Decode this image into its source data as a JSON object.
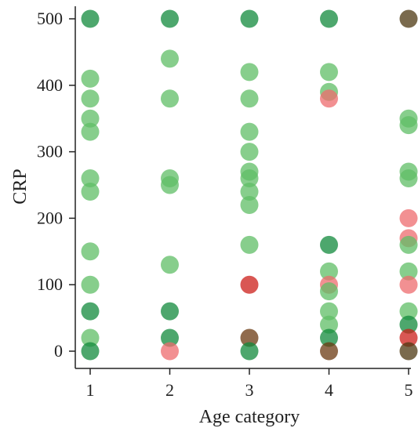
{
  "chart_data": {
    "type": "scatter",
    "xlabel": "Age category",
    "ylabel": "CRP",
    "xlim": [
      0.8,
      5.2
    ],
    "ylim": [
      -20,
      520
    ],
    "x_ticks": [
      "1",
      "2",
      "3",
      "4",
      "5"
    ],
    "y_ticks": [
      "0",
      "100",
      "200",
      "300",
      "400",
      "500"
    ],
    "grid": false,
    "legend": "none",
    "colors": {
      "light_green": "#5fbd66",
      "dark_green": "#118a3c",
      "light_red": "#ee6b6e",
      "dark_red": "#cc1f1a",
      "brown": "#6b3a12",
      "dark_brown": "#4d3811"
    },
    "points": [
      {
        "x": 1,
        "y": 500,
        "color": "dark_green"
      },
      {
        "x": 1,
        "y": 410,
        "color": "light_green"
      },
      {
        "x": 1,
        "y": 380,
        "color": "light_green"
      },
      {
        "x": 1,
        "y": 350,
        "color": "light_green"
      },
      {
        "x": 1,
        "y": 330,
        "color": "light_green"
      },
      {
        "x": 1,
        "y": 260,
        "color": "light_green"
      },
      {
        "x": 1,
        "y": 240,
        "color": "light_green"
      },
      {
        "x": 1,
        "y": 150,
        "color": "light_green"
      },
      {
        "x": 1,
        "y": 100,
        "color": "light_green"
      },
      {
        "x": 1,
        "y": 60,
        "color": "dark_green"
      },
      {
        "x": 1,
        "y": 20,
        "color": "light_green"
      },
      {
        "x": 1,
        "y": 0,
        "color": "dark_green"
      },
      {
        "x": 2,
        "y": 500,
        "color": "dark_green"
      },
      {
        "x": 2,
        "y": 440,
        "color": "light_green"
      },
      {
        "x": 2,
        "y": 380,
        "color": "light_green"
      },
      {
        "x": 2,
        "y": 260,
        "color": "light_green"
      },
      {
        "x": 2,
        "y": 250,
        "color": "light_green"
      },
      {
        "x": 2,
        "y": 130,
        "color": "light_green"
      },
      {
        "x": 2,
        "y": 60,
        "color": "dark_green"
      },
      {
        "x": 2,
        "y": 20,
        "color": "dark_green"
      },
      {
        "x": 2,
        "y": 0,
        "color": "light_red"
      },
      {
        "x": 3,
        "y": 500,
        "color": "dark_green"
      },
      {
        "x": 3,
        "y": 420,
        "color": "light_green"
      },
      {
        "x": 3,
        "y": 380,
        "color": "light_green"
      },
      {
        "x": 3,
        "y": 330,
        "color": "light_green"
      },
      {
        "x": 3,
        "y": 300,
        "color": "light_green"
      },
      {
        "x": 3,
        "y": 270,
        "color": "light_green"
      },
      {
        "x": 3,
        "y": 260,
        "color": "light_green"
      },
      {
        "x": 3,
        "y": 240,
        "color": "light_green"
      },
      {
        "x": 3,
        "y": 220,
        "color": "light_green"
      },
      {
        "x": 3,
        "y": 160,
        "color": "light_green"
      },
      {
        "x": 3,
        "y": 100,
        "color": "dark_red"
      },
      {
        "x": 3,
        "y": 20,
        "color": "brown"
      },
      {
        "x": 3,
        "y": 0,
        "color": "dark_green"
      },
      {
        "x": 4,
        "y": 500,
        "color": "dark_green"
      },
      {
        "x": 4,
        "y": 420,
        "color": "light_green"
      },
      {
        "x": 4,
        "y": 390,
        "color": "light_green"
      },
      {
        "x": 4,
        "y": 380,
        "color": "light_red"
      },
      {
        "x": 4,
        "y": 160,
        "color": "dark_green"
      },
      {
        "x": 4,
        "y": 120,
        "color": "light_green"
      },
      {
        "x": 4,
        "y": 100,
        "color": "light_red"
      },
      {
        "x": 4,
        "y": 90,
        "color": "light_green"
      },
      {
        "x": 4,
        "y": 60,
        "color": "light_green"
      },
      {
        "x": 4,
        "y": 40,
        "color": "light_green"
      },
      {
        "x": 4,
        "y": 20,
        "color": "dark_green"
      },
      {
        "x": 4,
        "y": 0,
        "color": "brown"
      },
      {
        "x": 5,
        "y": 500,
        "color": "dark_brown"
      },
      {
        "x": 5,
        "y": 350,
        "color": "light_green"
      },
      {
        "x": 5,
        "y": 340,
        "color": "light_green"
      },
      {
        "x": 5,
        "y": 270,
        "color": "light_green"
      },
      {
        "x": 5,
        "y": 260,
        "color": "light_green"
      },
      {
        "x": 5,
        "y": 200,
        "color": "light_red"
      },
      {
        "x": 5,
        "y": 170,
        "color": "light_red"
      },
      {
        "x": 5,
        "y": 160,
        "color": "light_green"
      },
      {
        "x": 5,
        "y": 120,
        "color": "light_green"
      },
      {
        "x": 5,
        "y": 100,
        "color": "light_red"
      },
      {
        "x": 5,
        "y": 60,
        "color": "light_green"
      },
      {
        "x": 5,
        "y": 40,
        "color": "dark_green"
      },
      {
        "x": 5,
        "y": 20,
        "color": "dark_red"
      },
      {
        "x": 5,
        "y": 0,
        "color": "dark_brown"
      }
    ]
  }
}
